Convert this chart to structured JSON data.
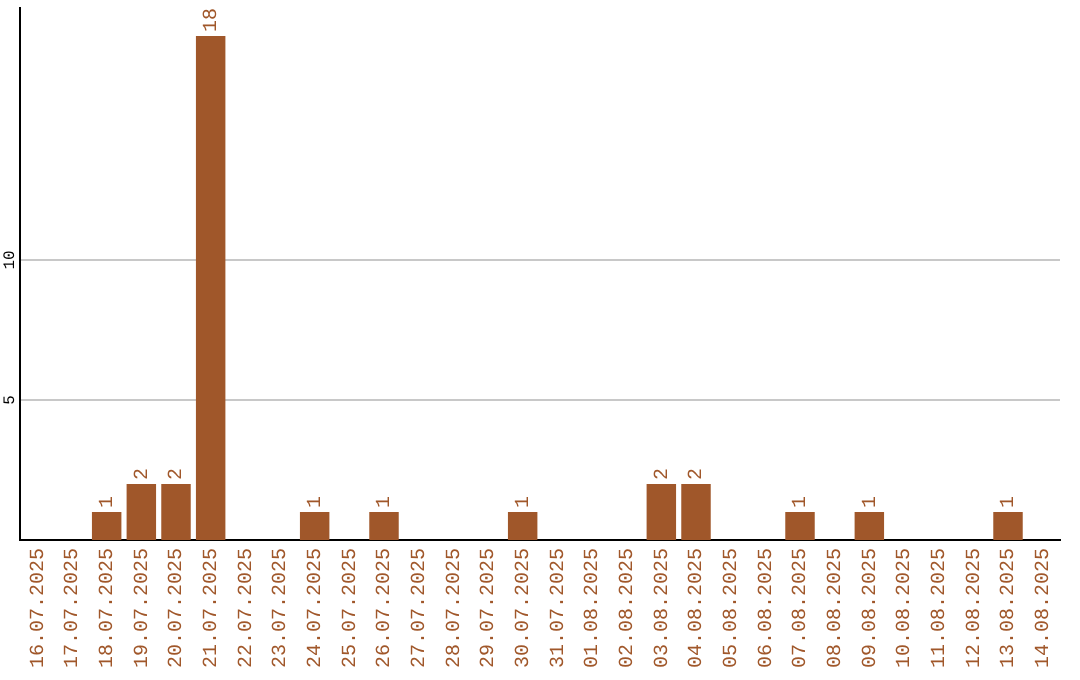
{
  "chart_data": {
    "type": "bar",
    "categories": [
      "16.07.2025",
      "17.07.2025",
      "18.07.2025",
      "19.07.2025",
      "20.07.2025",
      "21.07.2025",
      "22.07.2025",
      "23.07.2025",
      "24.07.2025",
      "25.07.2025",
      "26.07.2025",
      "27.07.2025",
      "28.07.2025",
      "29.07.2025",
      "30.07.2025",
      "31.07.2025",
      "01.08.2025",
      "02.08.2025",
      "03.08.2025",
      "04.08.2025",
      "05.08.2025",
      "06.08.2025",
      "07.08.2025",
      "08.08.2025",
      "09.08.2025",
      "10.08.2025",
      "11.08.2025",
      "12.08.2025",
      "13.08.2025",
      "14.08.2025"
    ],
    "values": [
      0,
      0,
      1,
      2,
      2,
      18,
      0,
      0,
      1,
      0,
      1,
      0,
      0,
      0,
      1,
      0,
      0,
      0,
      2,
      2,
      0,
      0,
      1,
      0,
      1,
      0,
      0,
      0,
      1,
      0
    ],
    "value_labels": [
      null,
      null,
      "1",
      "2",
      "2",
      "18",
      null,
      null,
      "1",
      null,
      "1",
      null,
      null,
      null,
      "1",
      null,
      null,
      null,
      "2",
      "2",
      null,
      null,
      "1",
      null,
      "1",
      null,
      null,
      null,
      "1",
      null
    ],
    "color": "#a0572a",
    "ylim": [
      0,
      19
    ],
    "yticks": [
      5,
      10
    ],
    "grid": "y",
    "legend": false
  }
}
